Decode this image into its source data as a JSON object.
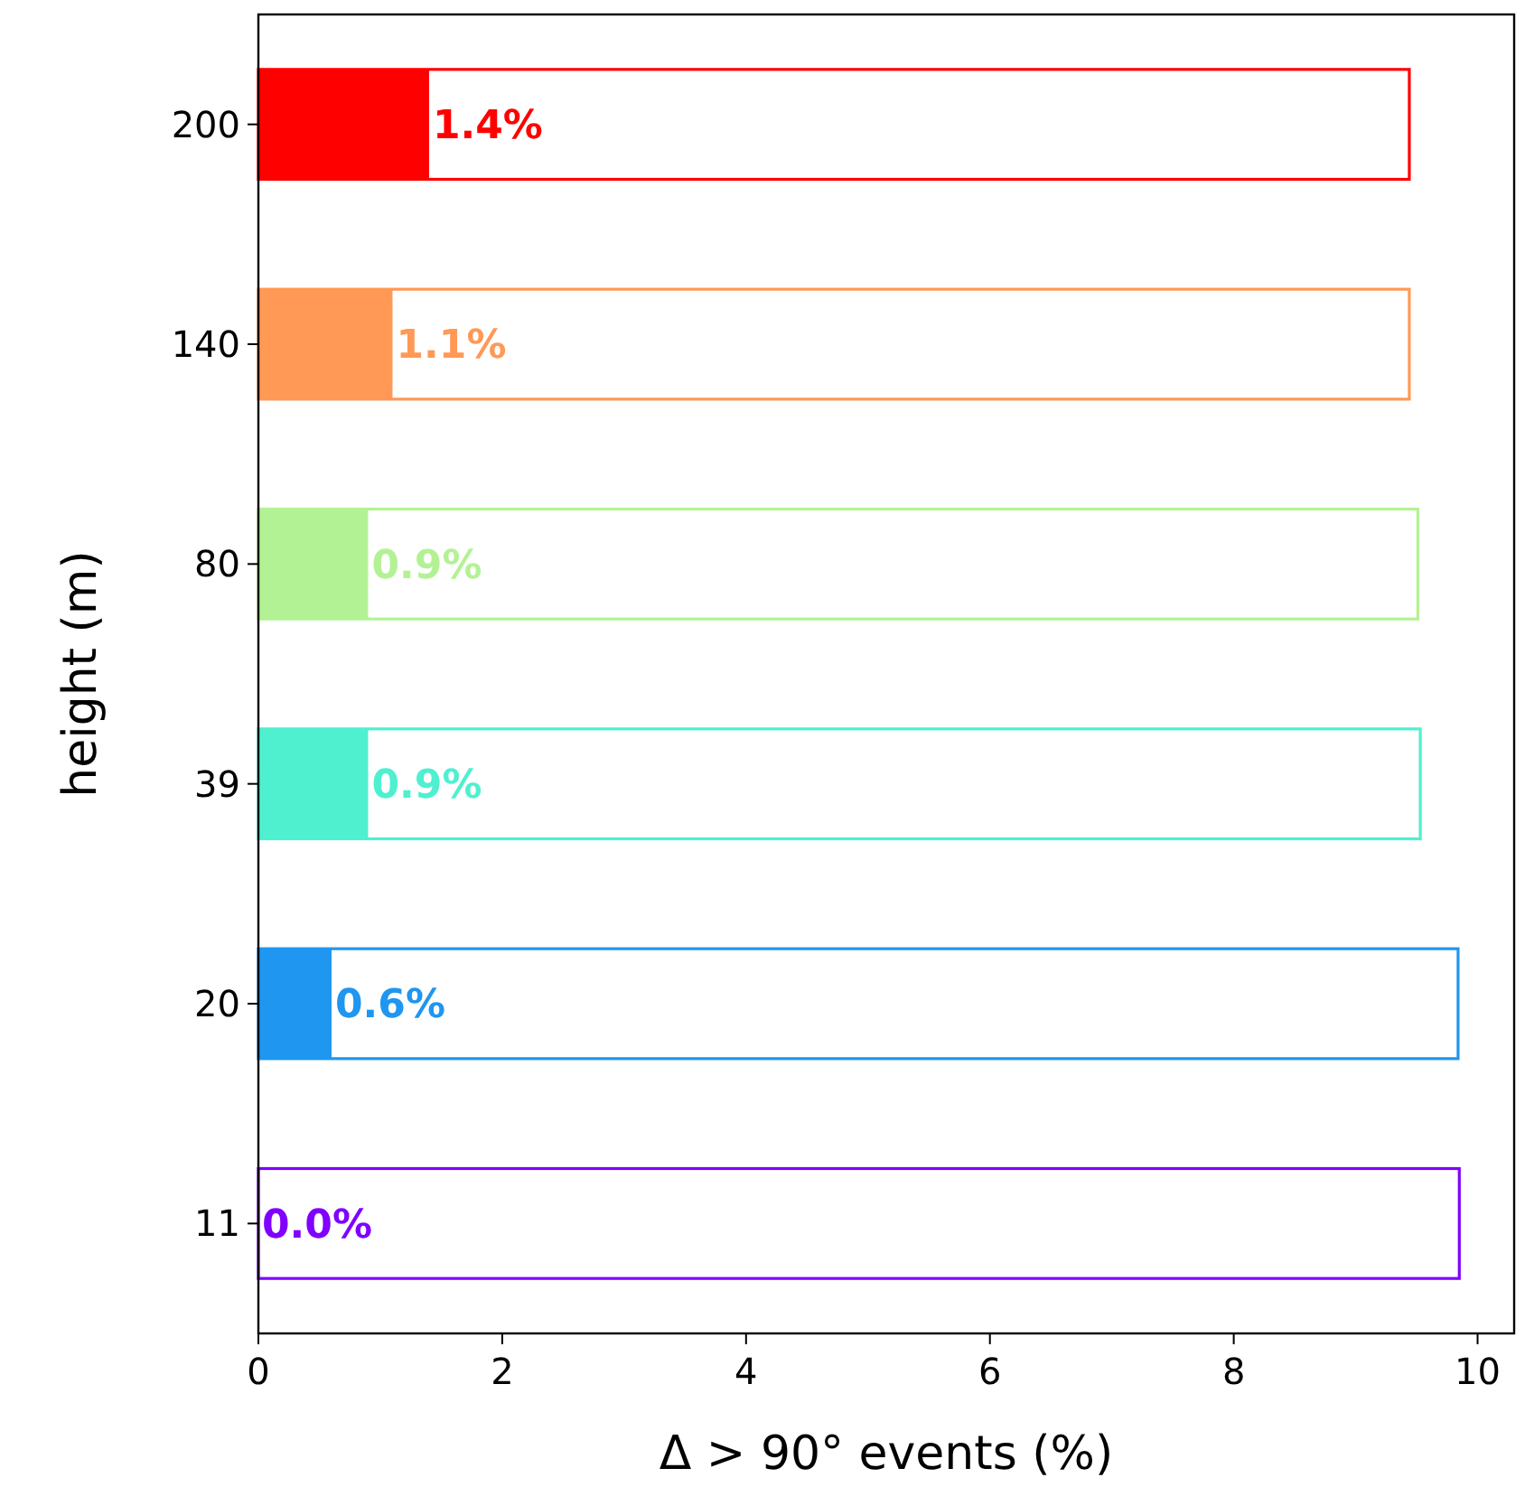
{
  "chart_data": {
    "type": "bar",
    "orientation": "horizontal",
    "categories": [
      "200",
      "140",
      "80",
      "39",
      "20",
      "11"
    ],
    "series": [
      {
        "colors": [
          "#ff0000",
          "#ff9955",
          "#b3f294",
          "#4ef0d0",
          "#1f96f0",
          "#8000ff"
        ],
        "values": [
          9.44,
          9.44,
          9.51,
          9.53,
          9.84,
          9.85
        ]
      },
      {
        "colors": [
          "#ff0000",
          "#ff9955",
          "#b3f294",
          "#4ef0d0",
          "#1f96f0",
          "#8000ff"
        ],
        "values": [
          1.4,
          1.1,
          0.9,
          0.9,
          0.6,
          0.0
        ],
        "value_labels": [
          "1.4%",
          "1.1%",
          "0.9%",
          "0.9%",
          "0.6%",
          "0.0%"
        ]
      }
    ],
    "xlabel": "Δ > 90° events (%)",
    "ylabel": "height (m)",
    "xlim": [
      0,
      10.3
    ],
    "xticks": [
      0,
      2,
      4,
      6,
      8,
      10
    ],
    "grid": false
  }
}
